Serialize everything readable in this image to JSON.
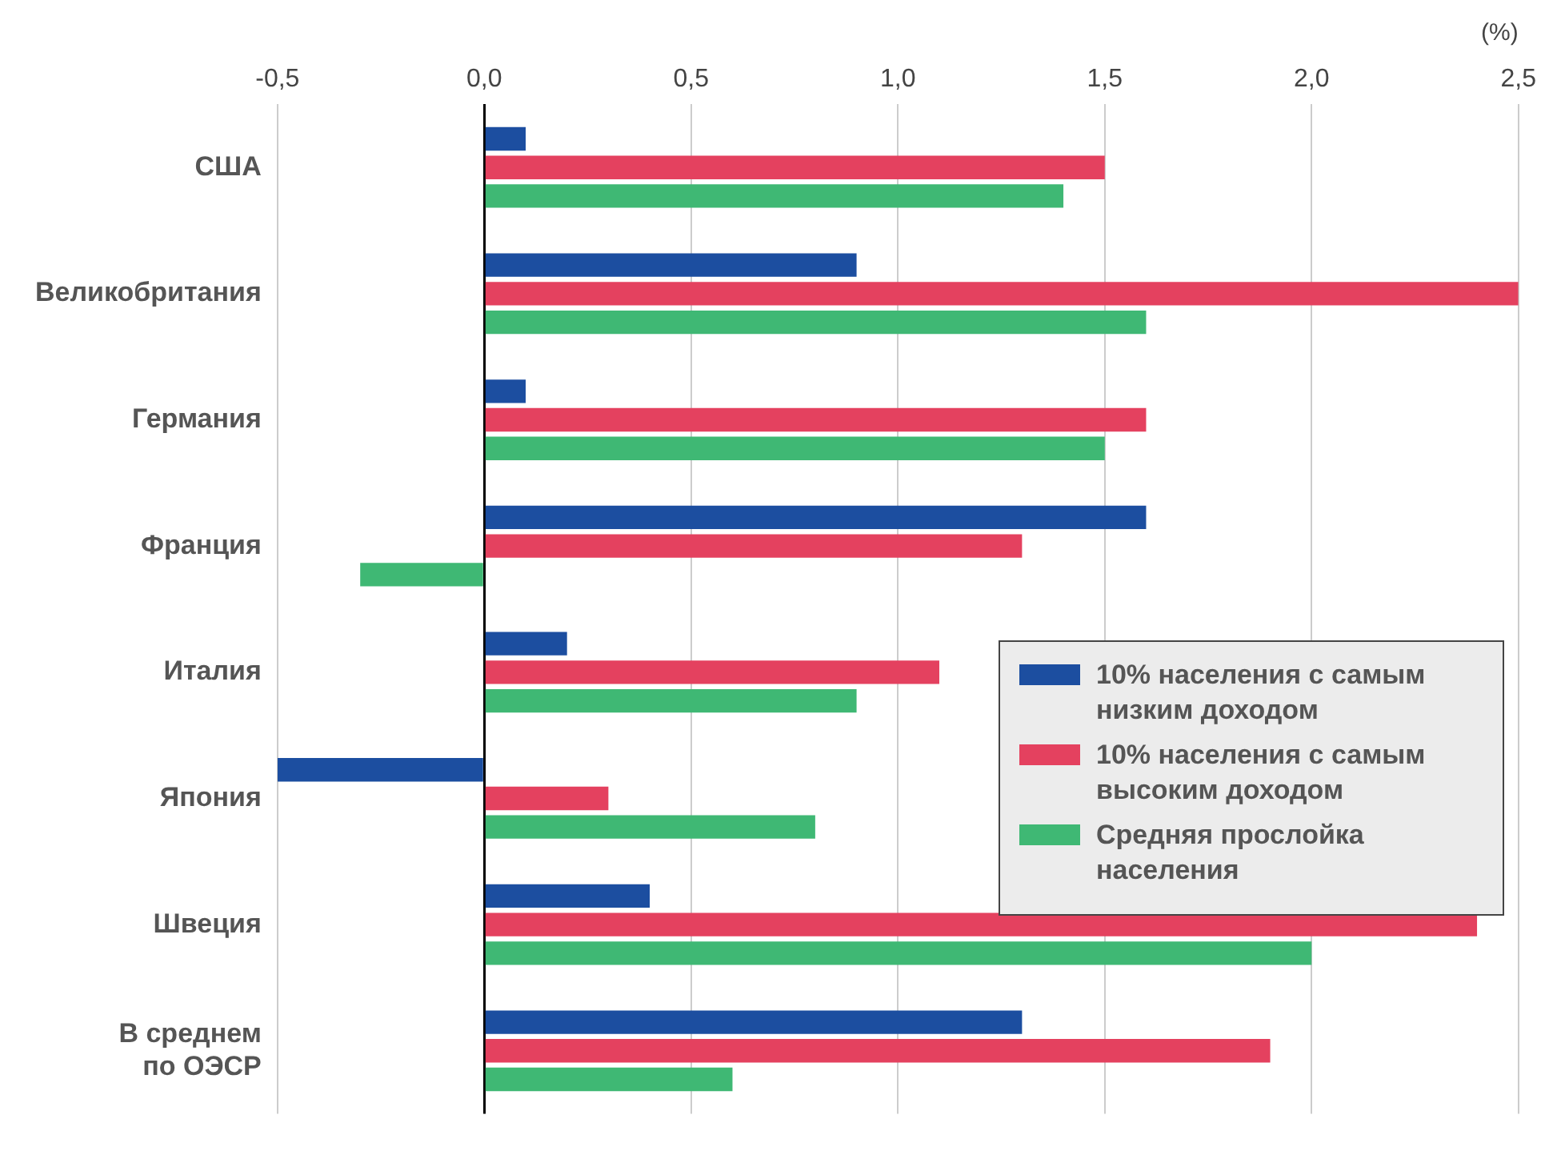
{
  "chart_data": {
    "type": "bar",
    "orientation": "horizontal",
    "xlabel": "(%)",
    "categories": [
      "США",
      "Великобритания",
      "Германия",
      "Франция",
      "Италия",
      "Япония",
      "Швеция",
      "В среднем по ОЭСР"
    ],
    "series": [
      {
        "name": "10% населения с самым низким доходом",
        "color": "#1c4ea0",
        "values": [
          0.1,
          0.9,
          0.1,
          1.6,
          0.2,
          -0.5,
          0.4,
          1.3
        ]
      },
      {
        "name": "10% населения с самым высоким доходом",
        "color": "#e4415f",
        "values": [
          1.5,
          2.5,
          1.6,
          1.3,
          1.1,
          0.3,
          2.4,
          1.9
        ]
      },
      {
        "name": "Средняя прослойка населения",
        "color": "#3fb874",
        "values": [
          1.4,
          1.6,
          1.5,
          -0.3,
          0.9,
          0.8,
          2.0,
          0.6
        ]
      }
    ],
    "xlim": [
      -0.5,
      2.5
    ],
    "xticks": [
      {
        "value": -0.5,
        "label": "-0,5"
      },
      {
        "value": 0,
        "label": "0,0"
      },
      {
        "value": 0.5,
        "label": "0,5"
      },
      {
        "value": 1,
        "label": "1,0"
      },
      {
        "value": 1.5,
        "label": "1,5"
      },
      {
        "value": 2,
        "label": "2,0"
      },
      {
        "value": 2.5,
        "label": "2,5"
      }
    ],
    "grid": "x",
    "legend": "right"
  }
}
